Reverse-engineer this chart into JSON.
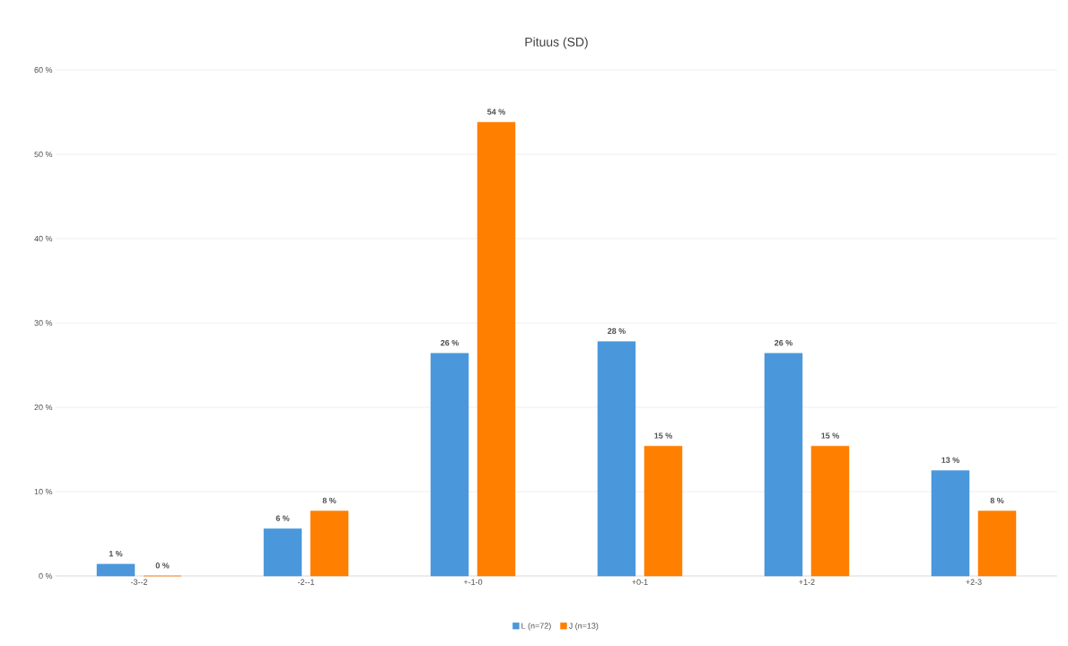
{
  "chart_data": {
    "type": "bar",
    "title": "Pituus (SD)",
    "categories": [
      "-3--2",
      "-2--1",
      "+-1-0",
      "+0-1",
      "+1-2",
      "+2-3"
    ],
    "series": [
      {
        "name": "L (n=72)",
        "color": "#4a98db",
        "values": [
          1.4,
          5.6,
          26.4,
          27.8,
          26.4,
          12.5
        ],
        "value_labels": [
          "1 %",
          "6 %",
          "26 %",
          "28 %",
          "26 %",
          "13 %"
        ]
      },
      {
        "name": "J (n=13)",
        "color": "#ff7f00",
        "values": [
          0,
          7.7,
          53.8,
          15.4,
          15.4,
          7.7
        ],
        "value_labels": [
          "0 %",
          "8 %",
          "54 %",
          "15 %",
          "15 %",
          "8 %"
        ]
      }
    ],
    "ylim": [
      0,
      60
    ],
    "yticks": [
      {
        "value": 0,
        "label": "0 %"
      },
      {
        "value": 10,
        "label": "10 %"
      },
      {
        "value": 20,
        "label": "20 %"
      },
      {
        "value": 30,
        "label": "30 %"
      },
      {
        "value": 40,
        "label": "40 %"
      },
      {
        "value": 50,
        "label": "50 %"
      },
      {
        "value": 60,
        "label": "60 %"
      }
    ],
    "grid": "y",
    "legend": "bottom"
  }
}
